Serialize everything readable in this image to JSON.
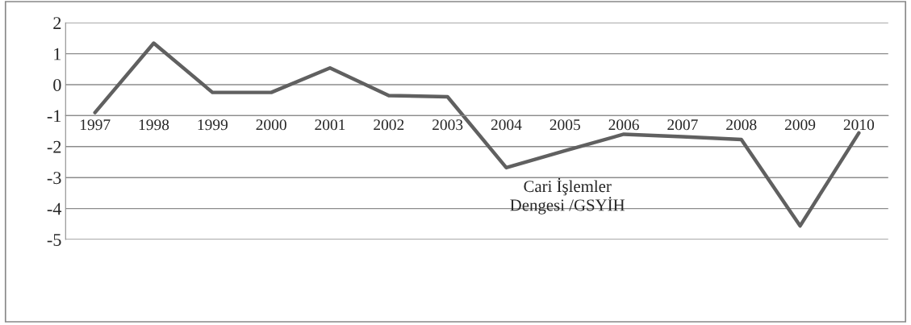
{
  "chart_data": {
    "type": "line",
    "categories": [
      "1997",
      "1998",
      "1999",
      "2000",
      "2001",
      "2002",
      "2003",
      "2004",
      "2005",
      "2006",
      "2007",
      "2008",
      "2009",
      "2010"
    ],
    "series": [
      {
        "name": "Cari İşlemler Dengesi /GSYİH",
        "color": "#606060",
        "values": [
          -0.9,
          1.34,
          -0.25,
          -0.25,
          0.54,
          -0.35,
          -0.39,
          -2.68,
          -2.13,
          -1.6,
          -1.68,
          -1.77,
          -4.56,
          -1.56
        ]
      }
    ],
    "ylim": [
      -5,
      2
    ],
    "yticks": [
      -5,
      -4,
      -3,
      -2,
      -1,
      0,
      1,
      2
    ],
    "grid": "y",
    "legend": false,
    "marker": "none",
    "line_style": "solid"
  }
}
